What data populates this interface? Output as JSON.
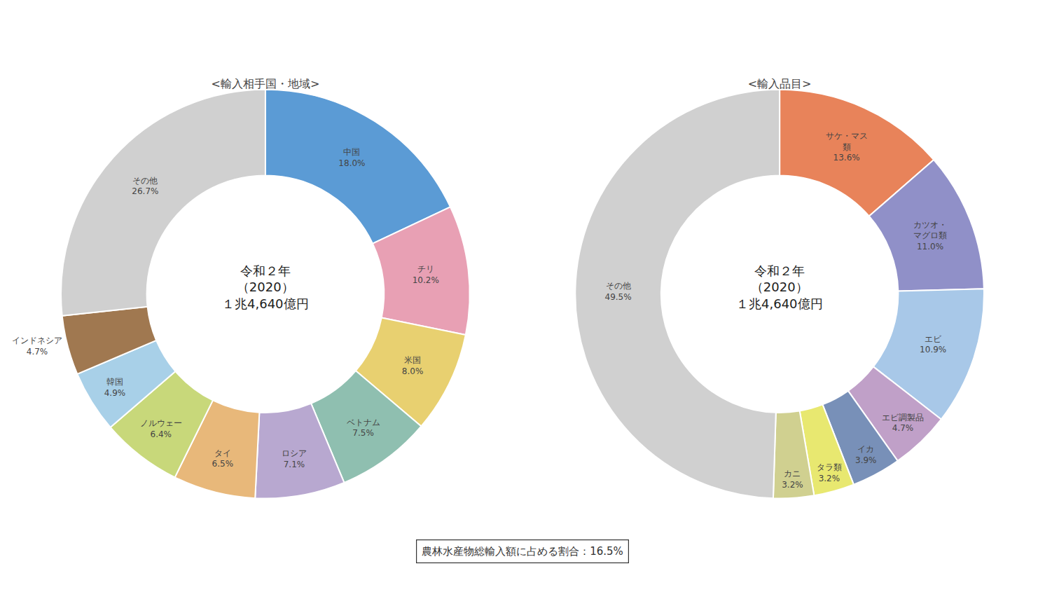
{
  "chart_data": [
    {
      "type": "donut",
      "title": "<輸入相手国・地域>",
      "categories": [
        "中国",
        "チリ",
        "米国",
        "ベトナム",
        "ロシア",
        "タイ",
        "ノルウェー",
        "韓国",
        "インドネシア",
        "その他"
      ],
      "values": [
        18.0,
        10.2,
        8.0,
        7.5,
        7.1,
        6.5,
        6.4,
        4.9,
        4.7,
        26.7
      ],
      "value_labels": [
        "18.0%",
        "10.2%",
        "8.0%",
        "7.5%",
        "7.1%",
        "6.5%",
        "6.4%",
        "4.9%",
        "4.7%",
        "26.7%"
      ],
      "colors": [
        "#5B9BD5",
        "#E8A0B4",
        "#E8D070",
        "#8FBFB0",
        "#B8A8D0",
        "#E8B87A",
        "#C8D87A",
        "#A8D0E8",
        "#A07850",
        "#D0D0D0"
      ],
      "data_labels": true,
      "annotations": [
        "令和２年",
        "（2020）",
        "１兆4,640億円"
      ]
    },
    {
      "type": "donut",
      "title": "<輸入品目>",
      "categories": [
        "サケ・マス\n類",
        "カツオ・\nマグロ類",
        "エビ",
        "エビ調製品",
        "イカ",
        "タラ類",
        "カニ",
        "その他"
      ],
      "values": [
        13.6,
        11.0,
        10.9,
        4.7,
        3.9,
        3.2,
        3.2,
        49.5
      ],
      "value_labels": [
        "13.6%",
        "11.0%",
        "10.9%",
        "4.7%",
        "3.9%",
        "3.2%",
        "3.2%",
        "49.5%"
      ],
      "colors": [
        "#E8835A",
        "#9090C8",
        "#A8C8E8",
        "#C0A0C8",
        "#7890B8",
        "#E8E870",
        "#D0D090",
        "#D0D0D0"
      ],
      "data_labels": true,
      "annotations": [
        "令和２年",
        "（2020）",
        "１兆4,640億円"
      ]
    }
  ],
  "annotations": [
    "農林水産物総輸入額に占める割合：16.5%"
  ]
}
